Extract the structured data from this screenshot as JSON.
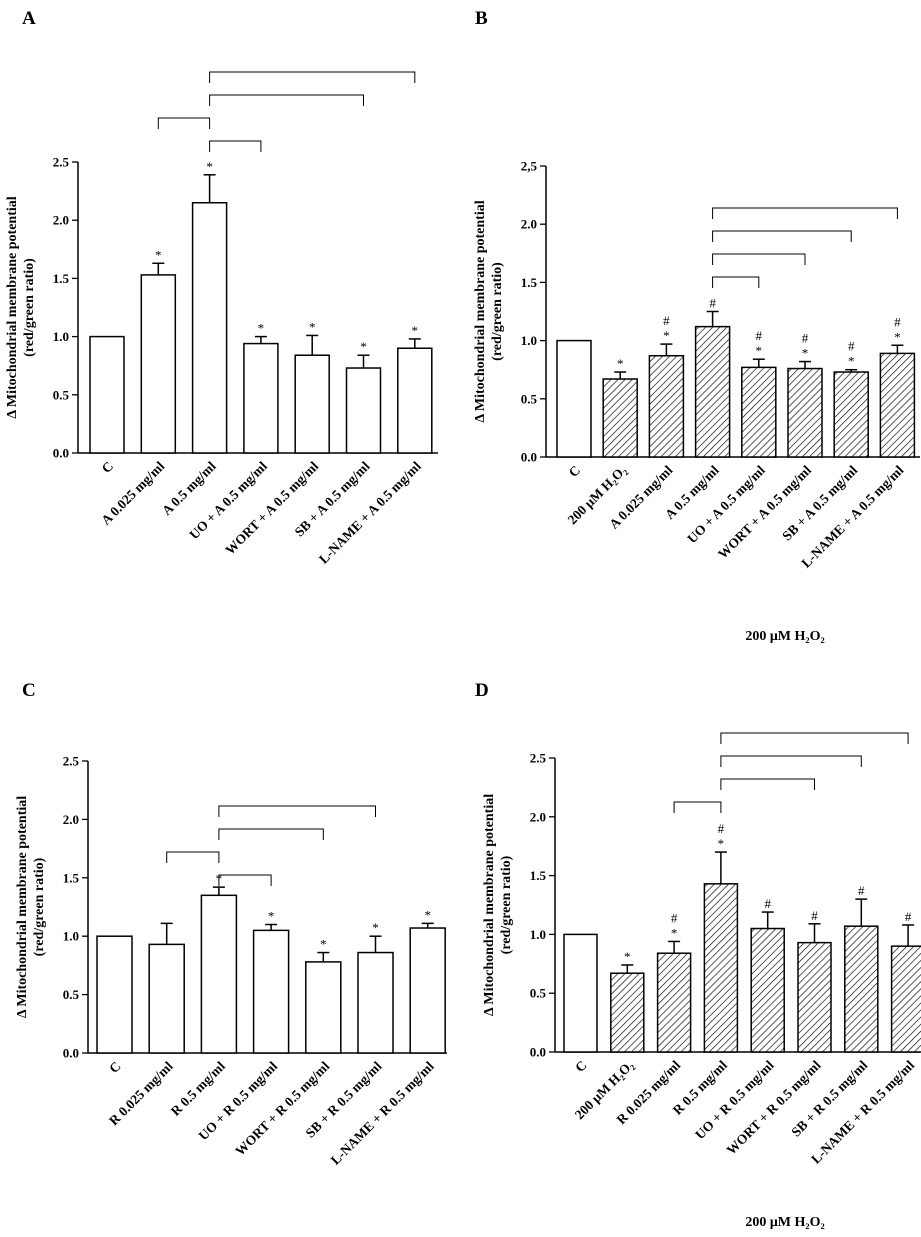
{
  "figure": {
    "colors": {
      "stroke": "#000000",
      "plain_fill": "#ffffff",
      "hatch": "#000000"
    }
  },
  "chart_data": [
    {
      "panel": "A",
      "type": "bar",
      "ylabel": "Δ Mitochondrial membrane potential\n(red/green ratio)",
      "ylim": [
        0,
        2.5
      ],
      "yticks": [
        "0.0",
        "0.5",
        "1.0",
        "1.5",
        "2.0",
        "2.5"
      ],
      "categories": [
        "C",
        "A 0.025 mg/ml",
        "A 0.5 mg/ml",
        "UO + A 0.5 mg/ml",
        "WORT + A 0.5 mg/ml",
        "SB + A 0.5 mg/ml",
        "L-NAME + A 0.5 mg/ml"
      ],
      "values": [
        1.0,
        1.53,
        2.15,
        0.94,
        0.84,
        0.73,
        0.9
      ],
      "errors": [
        0,
        0.1,
        0.24,
        0.06,
        0.17,
        0.11,
        0.08
      ],
      "hatched": [
        false,
        false,
        false,
        false,
        false,
        false,
        false
      ],
      "marks": [
        "",
        "*",
        "*",
        "*",
        "*",
        "*",
        "*"
      ],
      "treatment_label": "",
      "brackets": [
        {
          "from": 2,
          "to": 6
        },
        {
          "from": 2,
          "to": 5
        },
        {
          "from": 1,
          "to": 2
        },
        {
          "from": 2,
          "to": 3
        }
      ]
    },
    {
      "panel": "B",
      "type": "bar",
      "ylabel": "Δ Mitochondrial membrane potential\n(red/green ratio)",
      "ylim": [
        0,
        2.5
      ],
      "yticks": [
        "0.0",
        "0.5",
        "1.0",
        "1.5",
        "2.0",
        "2,5"
      ],
      "categories": [
        "C",
        "200 μM H₂O₂",
        "A 0.025 mg/ml",
        "A 0.5 mg/ml",
        "UO + A 0.5 mg/ml",
        "WORT + A 0.5 mg/ml",
        "SB + A 0.5 mg/ml",
        "L-NAME + A 0.5 mg/ml"
      ],
      "values": [
        1.0,
        0.67,
        0.87,
        1.12,
        0.77,
        0.76,
        0.73,
        0.89
      ],
      "errors": [
        0,
        0.06,
        0.1,
        0.13,
        0.07,
        0.06,
        0.02,
        0.07
      ],
      "hatched": [
        false,
        true,
        true,
        true,
        true,
        true,
        true,
        true
      ],
      "marks": [
        "",
        "*",
        "#\n*",
        "#",
        "#\n*",
        "#\n*",
        "#\n*",
        "#\n*"
      ],
      "treatment_label": "200 μM H₂O₂",
      "brackets": [
        {
          "from": 3,
          "to": 7
        },
        {
          "from": 3,
          "to": 6
        },
        {
          "from": 3,
          "to": 5
        },
        {
          "from": 3,
          "to": 4
        }
      ]
    },
    {
      "panel": "C",
      "type": "bar",
      "ylabel": "Δ Mitochondrial membrane potential\n(red/green ratio)",
      "ylim": [
        0,
        2.5
      ],
      "yticks": [
        "0.0",
        "0.5",
        "1.0",
        "1.5",
        "2.0",
        "2.5"
      ],
      "categories": [
        "C",
        "R 0.025 mg/ml",
        "R 0.5 mg/ml",
        "UO + R 0.5 mg/ml",
        "WORT + R 0.5 mg/ml",
        "SB + R 0.5 mg/ml",
        "L-NAME + R 0.5 mg/ml"
      ],
      "values": [
        1.0,
        0.93,
        1.35,
        1.05,
        0.78,
        0.86,
        1.07
      ],
      "errors": [
        0,
        0.18,
        0.07,
        0.05,
        0.08,
        0.14,
        0.04
      ],
      "hatched": [
        false,
        false,
        false,
        false,
        false,
        false,
        false
      ],
      "marks": [
        "",
        "",
        "*",
        "*",
        "*",
        "*",
        "*"
      ],
      "treatment_label": "",
      "brackets": [
        {
          "from": 2,
          "to": 5
        },
        {
          "from": 2,
          "to": 4
        },
        {
          "from": 1,
          "to": 2
        },
        {
          "from": 2,
          "to": 3
        }
      ]
    },
    {
      "panel": "D",
      "type": "bar",
      "ylabel": "Δ Mitochondrial membrane potential\n(red/green ratio)",
      "ylim": [
        0,
        2.5
      ],
      "yticks": [
        "0.0",
        "0.5",
        "1.0",
        "1.5",
        "2.0",
        "2.5"
      ],
      "categories": [
        "C",
        "200 μM H₂O₂",
        "R 0.025 mg/ml",
        "R 0.5 mg/ml",
        "UO + R 0.5 mg/ml",
        "WORT + R 0.5 mg/ml",
        "SB + R 0.5 mg/ml",
        "L-NAME + R 0.5 mg/ml"
      ],
      "values": [
        1.0,
        0.67,
        0.84,
        1.43,
        1.05,
        0.93,
        1.07,
        0.9
      ],
      "errors": [
        0,
        0.07,
        0.1,
        0.27,
        0.14,
        0.16,
        0.23,
        0.18
      ],
      "hatched": [
        false,
        true,
        true,
        true,
        true,
        true,
        true,
        true
      ],
      "marks": [
        "",
        "*",
        "#\n*",
        "#\n*",
        "#",
        "#",
        "#",
        "#"
      ],
      "treatment_label": "200 μM H₂O₂",
      "brackets": [
        {
          "from": 3,
          "to": 7
        },
        {
          "from": 3,
          "to": 6
        },
        {
          "from": 3,
          "to": 5
        },
        {
          "from": 2,
          "to": 3
        }
      ]
    }
  ]
}
